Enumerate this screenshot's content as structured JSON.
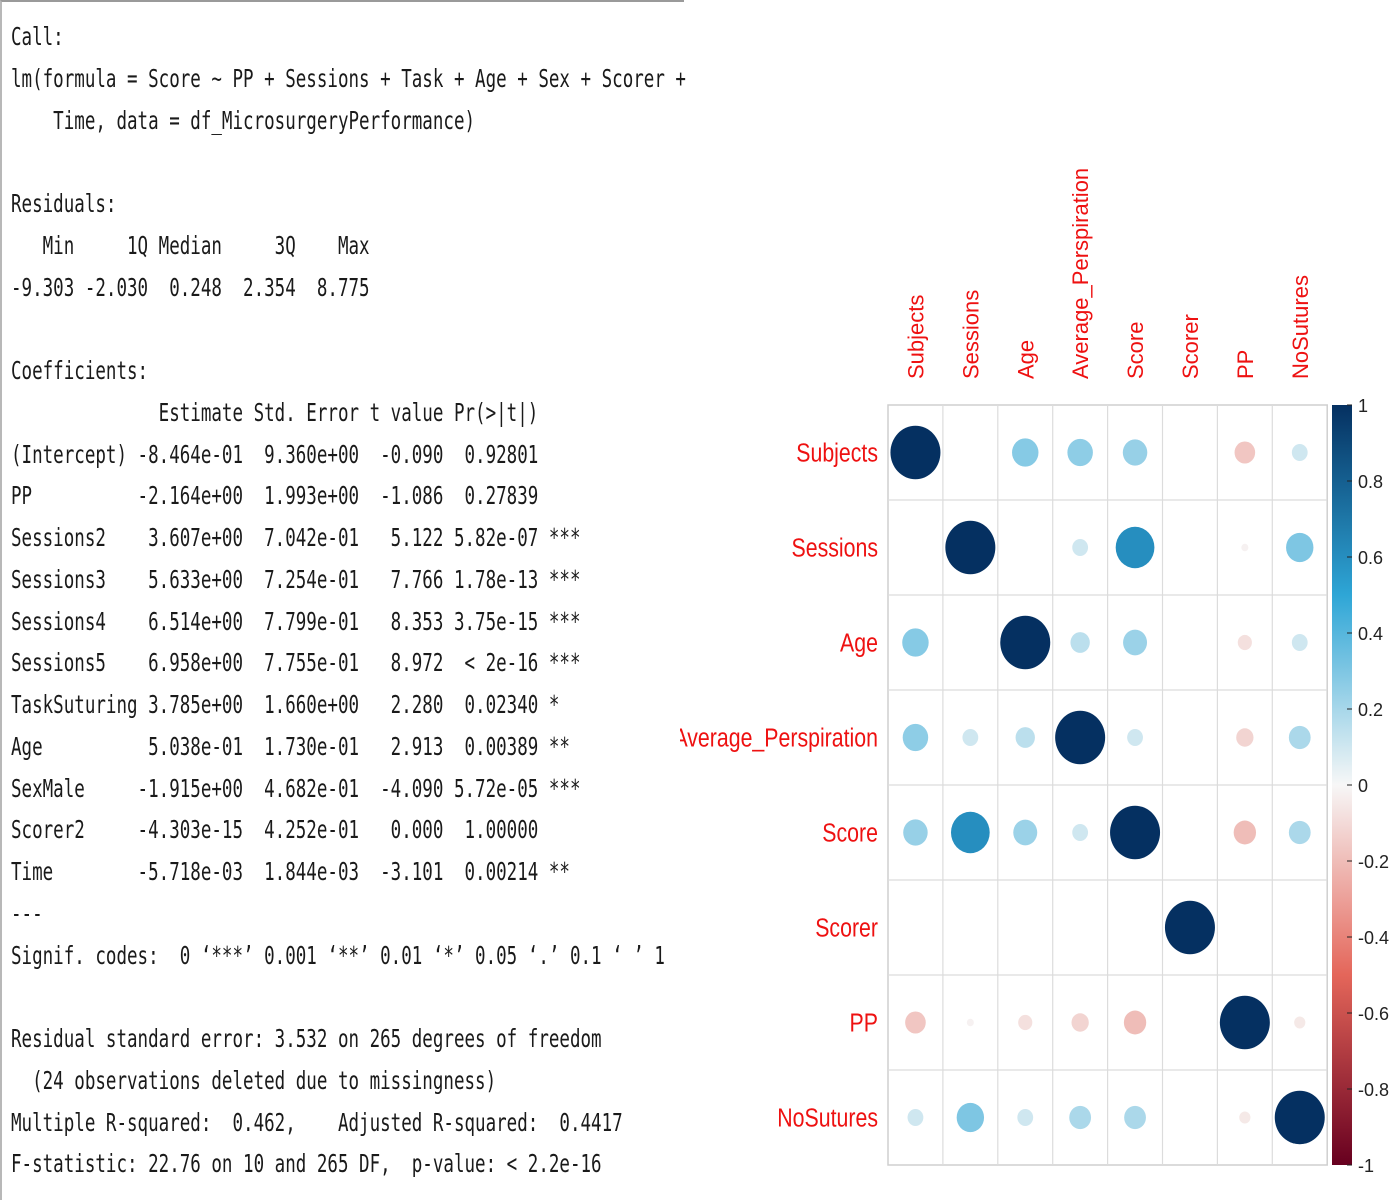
{
  "console": {
    "lines": [
      "Call:",
      "lm(formula = Score ~ PP + Sessions + Task + Age + Sex + Scorer +",
      "    Time, data = df_MicrosurgeryPerformance)",
      "",
      "Residuals:",
      "   Min     1Q Median     3Q    Max ",
      "-9.303 -2.030  0.248  2.354  8.775 ",
      "",
      "Coefficients:",
      "              Estimate Std. Error t value Pr(>|t|)    ",
      "(Intercept) -8.464e-01  9.360e+00  -0.090  0.92801    ",
      "PP          -2.164e+00  1.993e+00  -1.086  0.27839    ",
      "Sessions2    3.607e+00  7.042e-01   5.122 5.82e-07 ***",
      "Sessions3    5.633e+00  7.254e-01   7.766 1.78e-13 ***",
      "Sessions4    6.514e+00  7.799e-01   8.353 3.75e-15 ***",
      "Sessions5    6.958e+00  7.755e-01   8.972  < 2e-16 ***",
      "TaskSuturing 3.785e+00  1.660e+00   2.280  0.02340 *  ",
      "Age          5.038e-01  1.730e-01   2.913  0.00389 ** ",
      "SexMale     -1.915e+00  4.682e-01  -4.090 5.72e-05 ***",
      "Scorer2     -4.303e-15  4.252e-01   0.000  1.00000    ",
      "Time        -5.718e-03  1.844e-03  -3.101  0.00214 ** ",
      "---",
      "Signif. codes:  0 ‘***’ 0.001 ‘**’ 0.01 ‘*’ 0.05 ‘.’ 0.1 ‘ ’ 1",
      "",
      "Residual standard error: 3.532 on 265 degrees of freedom",
      "  (24 observations deleted due to missingness)",
      "Multiple R-squared:  0.462,\tAdjusted R-squared:  0.4417 ",
      "F-statistic: 22.76 on 10 and 265 DF,  p-value: < 2.2e-16"
    ]
  },
  "chart_data": {
    "type": "heatmap",
    "variables": [
      "Subjects",
      "Sessions",
      "Age",
      "Average_Perspiration",
      "Score",
      "Scorer",
      "PP",
      "NoSutures"
    ],
    "matrix": [
      [
        1.0,
        0.0,
        0.28,
        0.26,
        0.24,
        0.0,
        -0.17,
        0.1
      ],
      [
        0.0,
        1.0,
        0.0,
        0.1,
        0.6,
        0.0,
        -0.02,
        0.3
      ],
      [
        0.28,
        0.0,
        1.0,
        0.15,
        0.23,
        0.0,
        -0.08,
        0.1
      ],
      [
        0.26,
        0.1,
        0.15,
        1.0,
        0.1,
        0.0,
        -0.12,
        0.19
      ],
      [
        0.24,
        0.6,
        0.23,
        0.1,
        1.0,
        0.0,
        -0.2,
        0.19
      ],
      [
        0.0,
        0.0,
        0.0,
        0.0,
        0.0,
        1.0,
        0.0,
        0.0
      ],
      [
        -0.17,
        -0.02,
        -0.08,
        -0.12,
        -0.2,
        0.0,
        1.0,
        -0.05
      ],
      [
        0.1,
        0.3,
        0.1,
        0.19,
        0.19,
        0.0,
        -0.05,
        1.0
      ]
    ],
    "colorbar": {
      "range": [
        -1,
        1
      ],
      "ticks": [
        "1",
        "0.8",
        "0.6",
        "0.4",
        "0.2",
        "0",
        "-0.2",
        "-0.4",
        "-0.6",
        "-0.8",
        "-1"
      ]
    },
    "label_color": "#ee1111",
    "colors": {
      "pos_strong": "#053061",
      "pos_mid": "#2ea6d6",
      "zero": "#f7f7f7",
      "neg_mid": "#e4665a",
      "neg_strong": "#67001f"
    },
    "grid": true
  }
}
